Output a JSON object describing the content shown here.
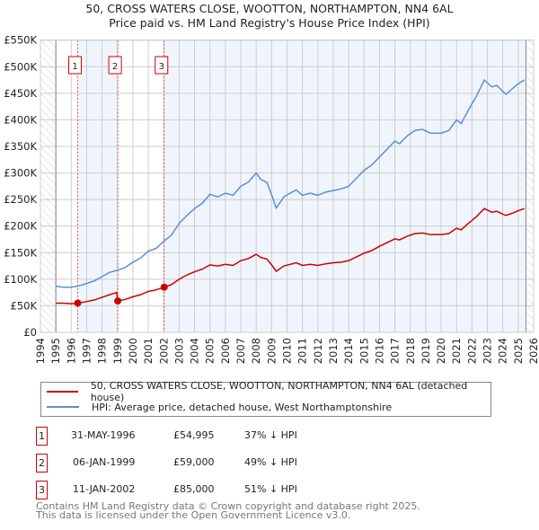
{
  "chart_data": {
    "type": "line",
    "title": "50, CROSS WATERS CLOSE, WOOTTON, NORTHAMPTON, NN4 6AL",
    "subtitle": "Price paid vs. HM Land Registry's House Price Index (HPI)",
    "xlim": [
      1994,
      2026
    ],
    "ylim": [
      0,
      550000
    ],
    "x_ticks": [
      "1994",
      "1995",
      "1996",
      "1997",
      "1998",
      "1999",
      "2000",
      "2001",
      "2002",
      "2003",
      "2004",
      "2005",
      "2006",
      "2007",
      "2008",
      "2009",
      "2010",
      "2011",
      "2012",
      "2013",
      "2014",
      "2015",
      "2016",
      "2017",
      "2018",
      "2019",
      "2020",
      "2021",
      "2022",
      "2023",
      "2024",
      "2025",
      "2026"
    ],
    "y_ticks": [
      "£0",
      "£50K",
      "£100K",
      "£150K",
      "£200K",
      "£250K",
      "£300K",
      "£350K",
      "£400K",
      "£450K",
      "£500K",
      "£550K"
    ],
    "grid": true,
    "data_range": [
      1995,
      2025.5
    ],
    "series": [
      {
        "name": "50, CROSS WATERS CLOSE, WOOTTON, NORTHAMPTON, NN4 6AL (detached house)",
        "color": "#cc0000",
        "points": [
          [
            1995.0,
            55
          ],
          [
            1995.5,
            55
          ],
          [
            1996.0,
            54
          ],
          [
            1996.42,
            55
          ],
          [
            1997.0,
            58
          ],
          [
            1997.5,
            61
          ],
          [
            1998.0,
            66
          ],
          [
            1998.5,
            71
          ],
          [
            1998.95,
            75
          ],
          [
            1999.02,
            59
          ],
          [
            1999.5,
            62
          ],
          [
            2000.0,
            67
          ],
          [
            2000.5,
            71
          ],
          [
            2001.0,
            77
          ],
          [
            2001.5,
            80
          ],
          [
            2002.03,
            85
          ],
          [
            2002.5,
            90
          ],
          [
            2003.0,
            100
          ],
          [
            2003.5,
            108
          ],
          [
            2004.0,
            114
          ],
          [
            2004.5,
            119
          ],
          [
            2005.0,
            127
          ],
          [
            2005.5,
            125
          ],
          [
            2006.0,
            128
          ],
          [
            2006.5,
            126
          ],
          [
            2007.0,
            135
          ],
          [
            2007.5,
            139
          ],
          [
            2008.0,
            147
          ],
          [
            2008.3,
            141
          ],
          [
            2008.7,
            138
          ],
          [
            2009.0,
            127
          ],
          [
            2009.3,
            115
          ],
          [
            2009.8,
            125
          ],
          [
            2010.2,
            128
          ],
          [
            2010.6,
            131
          ],
          [
            2011.0,
            126
          ],
          [
            2011.5,
            128
          ],
          [
            2012.0,
            126
          ],
          [
            2012.5,
            129
          ],
          [
            2013.0,
            131
          ],
          [
            2013.5,
            132
          ],
          [
            2014.0,
            135
          ],
          [
            2014.5,
            142
          ],
          [
            2015.0,
            149
          ],
          [
            2015.5,
            154
          ],
          [
            2016.0,
            162
          ],
          [
            2016.5,
            169
          ],
          [
            2017.0,
            176
          ],
          [
            2017.3,
            174
          ],
          [
            2017.8,
            181
          ],
          [
            2018.3,
            186
          ],
          [
            2018.8,
            187
          ],
          [
            2019.3,
            184
          ],
          [
            2020.0,
            184
          ],
          [
            2020.5,
            186
          ],
          [
            2021.0,
            196
          ],
          [
            2021.3,
            193
          ],
          [
            2021.8,
            206
          ],
          [
            2022.3,
            218
          ],
          [
            2022.8,
            233
          ],
          [
            2023.3,
            226
          ],
          [
            2023.6,
            228
          ],
          [
            2024.2,
            220
          ],
          [
            2024.6,
            224
          ],
          [
            2025.0,
            229
          ],
          [
            2025.4,
            233
          ]
        ]
      },
      {
        "name": "HPI: Average price, detached house, West Northamptonshire",
        "color": "#5b8fd6",
        "points": [
          [
            1995.0,
            87
          ],
          [
            1995.5,
            85
          ],
          [
            1996.0,
            85
          ],
          [
            1996.42,
            87
          ],
          [
            1997.0,
            92
          ],
          [
            1997.5,
            97
          ],
          [
            1998.0,
            105
          ],
          [
            1998.5,
            113
          ],
          [
            1999.0,
            117
          ],
          [
            1999.5,
            122
          ],
          [
            2000.0,
            132
          ],
          [
            2000.5,
            140
          ],
          [
            2001.0,
            153
          ],
          [
            2001.5,
            158
          ],
          [
            2002.03,
            172
          ],
          [
            2002.5,
            183
          ],
          [
            2003.0,
            205
          ],
          [
            2003.5,
            220
          ],
          [
            2004.0,
            233
          ],
          [
            2004.5,
            243
          ],
          [
            2005.0,
            260
          ],
          [
            2005.5,
            255
          ],
          [
            2006.0,
            262
          ],
          [
            2006.5,
            258
          ],
          [
            2007.0,
            275
          ],
          [
            2007.5,
            283
          ],
          [
            2008.0,
            300
          ],
          [
            2008.3,
            288
          ],
          [
            2008.7,
            282
          ],
          [
            2009.0,
            259
          ],
          [
            2009.3,
            234
          ],
          [
            2009.8,
            255
          ],
          [
            2010.2,
            262
          ],
          [
            2010.6,
            268
          ],
          [
            2011.0,
            258
          ],
          [
            2011.5,
            262
          ],
          [
            2012.0,
            258
          ],
          [
            2012.5,
            264
          ],
          [
            2013.0,
            267
          ],
          [
            2013.5,
            270
          ],
          [
            2014.0,
            275
          ],
          [
            2014.5,
            290
          ],
          [
            2015.0,
            305
          ],
          [
            2015.5,
            315
          ],
          [
            2016.0,
            330
          ],
          [
            2016.5,
            345
          ],
          [
            2017.0,
            360
          ],
          [
            2017.3,
            355
          ],
          [
            2017.8,
            370
          ],
          [
            2018.3,
            380
          ],
          [
            2018.8,
            382
          ],
          [
            2019.3,
            375
          ],
          [
            2020.0,
            375
          ],
          [
            2020.5,
            380
          ],
          [
            2021.0,
            400
          ],
          [
            2021.3,
            393
          ],
          [
            2021.8,
            420
          ],
          [
            2022.3,
            445
          ],
          [
            2022.8,
            475
          ],
          [
            2023.3,
            462
          ],
          [
            2023.6,
            465
          ],
          [
            2024.2,
            448
          ],
          [
            2024.6,
            458
          ],
          [
            2025.0,
            468
          ],
          [
            2025.4,
            475
          ]
        ]
      }
    ],
    "y_unit": "thousands GBP",
    "sales": [
      {
        "label": "1",
        "x": 1996.42,
        "price": 54995,
        "date": "31-MAY-1996",
        "price_text": "£54,995",
        "hpi_text": "37% ↓ HPI"
      },
      {
        "label": "2",
        "x": 1999.02,
        "price": 59000,
        "date": "06-JAN-1999",
        "price_text": "£59,000",
        "hpi_text": "49% ↓ HPI"
      },
      {
        "label": "3",
        "x": 2002.03,
        "price": 85000,
        "date": "11-JAN-2002",
        "price_text": "£85,000",
        "hpi_text": "51% ↓ HPI"
      }
    ]
  },
  "footer": {
    "line1": "Contains HM Land Registry data © Crown copyright and database right 2025.",
    "line2": "This data is licensed under the Open Government Licence v3.0."
  }
}
